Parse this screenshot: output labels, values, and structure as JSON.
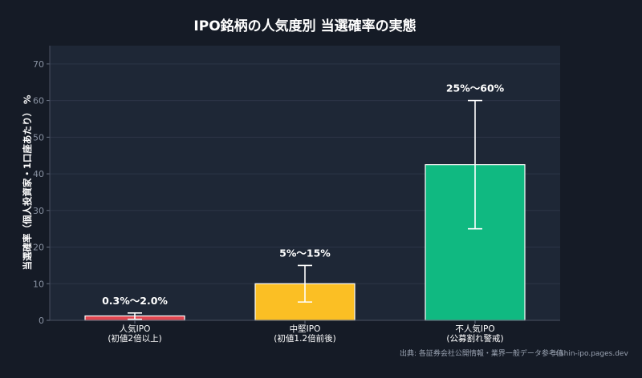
{
  "chart_data": {
    "type": "bar",
    "title": "IPO銘柄の人気度別 当選確率の実態",
    "ylabel": "当選確率（個人投資家・1口座あたり） %",
    "ylim": [
      0,
      75
    ],
    "yticks": [
      0,
      10,
      20,
      30,
      40,
      50,
      60,
      70
    ],
    "categories": [
      [
        "人気IPO",
        "(初値2倍以上)"
      ],
      [
        "中堅IPO",
        "(初値1.2倍前後)"
      ],
      [
        "不人気IPO",
        "(公募割れ警戒)"
      ]
    ],
    "values": [
      1.2,
      10,
      42.5
    ],
    "error_low": [
      0.3,
      5,
      25
    ],
    "error_high": [
      2.0,
      15,
      60
    ],
    "data_labels": [
      "0.3%〜2.0%",
      "5%〜15%",
      "25%〜60%"
    ],
    "colors": [
      "#e0454f",
      "#fbbf24",
      "#10b981"
    ],
    "grid": true
  },
  "footer": {
    "source": "出典: 各証券会社公開情報・業界一般データ参考値",
    "site": "⌗ shin-ipo.pages.dev"
  }
}
